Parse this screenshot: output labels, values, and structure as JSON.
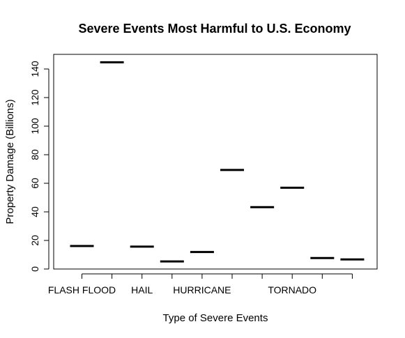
{
  "chart_data": {
    "type": "bar",
    "title": "Severe Events Most Harmful to U.S. Economy",
    "xlabel": "Type of Severe Events",
    "ylabel": "Property Damage (Billions)",
    "ylim": [
      0,
      150
    ],
    "yticks": [
      0,
      20,
      40,
      60,
      80,
      100,
      120,
      140
    ],
    "grid": false,
    "x_tick_labels": [
      "FLASH FLOOD",
      "",
      "HAIL",
      "",
      "HURRICANE",
      "",
      "",
      "TORNADO",
      "",
      ""
    ],
    "values": [
      16.1,
      144.7,
      15.7,
      5.3,
      11.9,
      69.3,
      43.3,
      56.9,
      7.7,
      6.7
    ]
  }
}
